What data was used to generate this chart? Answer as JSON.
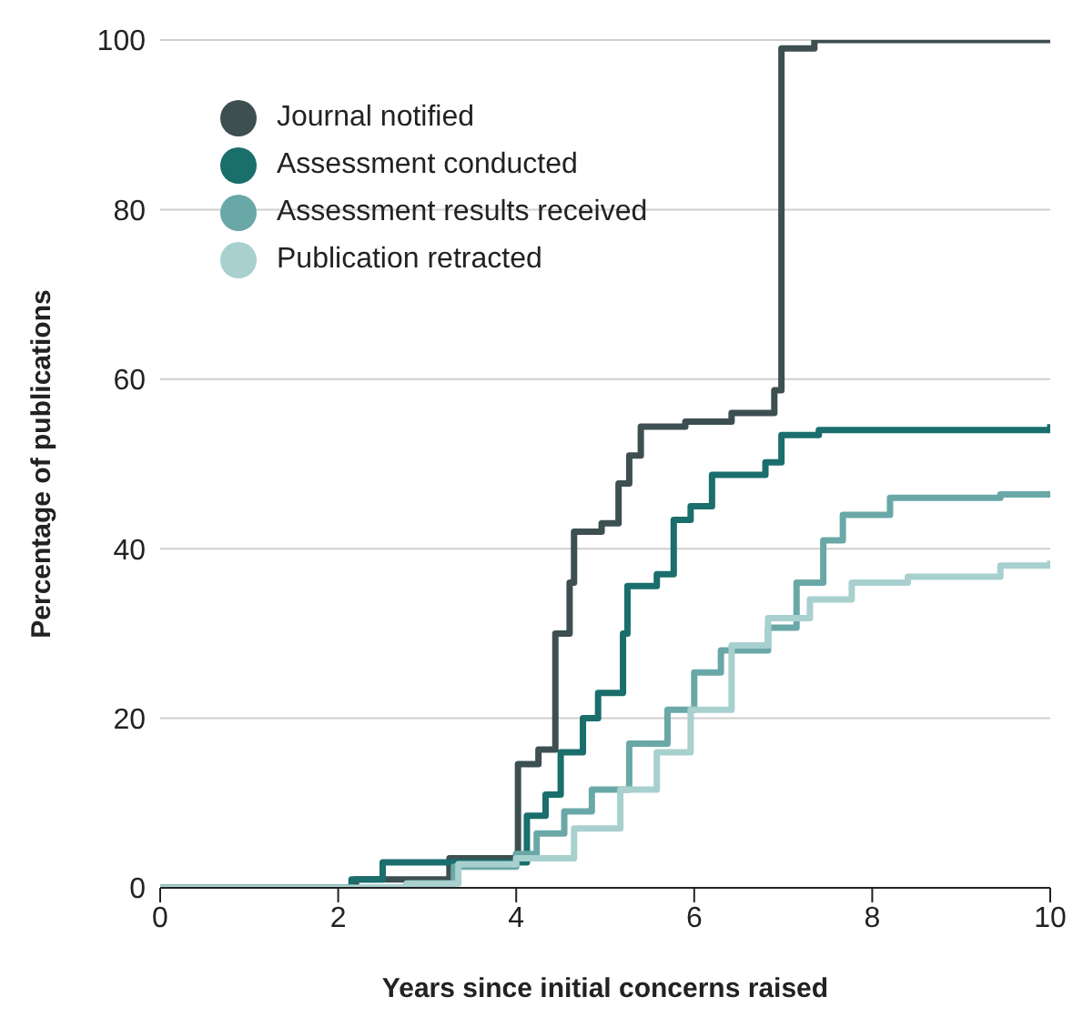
{
  "chart_data": {
    "type": "step",
    "xlabel": "Years since initial concerns raised",
    "ylabel": "Percentage of publications",
    "xlim": [
      0,
      10
    ],
    "xticks": [
      0,
      2,
      4,
      6,
      8,
      10
    ],
    "ylim": [
      0,
      100
    ],
    "yticks": [
      0,
      20,
      40,
      60,
      80,
      100
    ],
    "grid": "y",
    "legend": "top left",
    "marker": "none",
    "line_style": "solid",
    "series": [
      {
        "name": "Journal notified",
        "color": "#3d4f50",
        "x": [
          0,
          2.2,
          3.25,
          4,
          4.02,
          4.25,
          4.44,
          4.6,
          4.65,
          4.96,
          5.15,
          5.27,
          5.4,
          5.9,
          6.42,
          6.9,
          6.98,
          7.35,
          10
        ],
        "values": [
          0,
          1,
          3.5,
          4,
          14.6,
          16.3,
          30,
          36,
          42,
          43,
          47.7,
          51,
          54.4,
          55,
          56,
          58.7,
          99,
          100,
          100
        ]
      },
      {
        "name": "Assessment conducted",
        "color": "#1a6e6c",
        "x": [
          0,
          2.15,
          2.5,
          4,
          4.12,
          4.33,
          4.5,
          4.75,
          4.92,
          5.2,
          5.25,
          5.58,
          5.77,
          5.96,
          6.2,
          6.8,
          6.98,
          7.4,
          10
        ],
        "values": [
          0,
          1,
          3,
          3,
          8.5,
          11,
          16,
          20,
          23,
          30,
          35.6,
          37,
          43.4,
          45,
          48.7,
          50.2,
          53.4,
          54,
          54.7
        ]
      },
      {
        "name": "Assessment results received",
        "color": "#6aa8a8",
        "x": [
          0,
          2.6,
          2.77,
          3.3,
          4,
          4.23,
          4.54,
          4.85,
          5.27,
          5.7,
          6,
          6.3,
          6.83,
          7.15,
          7.45,
          7.67,
          8.2,
          9.44,
          10
        ],
        "values": [
          0,
          0,
          0.5,
          2.5,
          4,
          6.4,
          9,
          11.6,
          17,
          21,
          25.4,
          28,
          30.7,
          36,
          41,
          44,
          46,
          46.4,
          46.8
        ]
      },
      {
        "name": "Publication retracted",
        "color": "#a8d0cf",
        "x": [
          0,
          2.6,
          2.77,
          3.35,
          4,
          4.65,
          5.17,
          5.58,
          5.96,
          6.42,
          6.83,
          7.3,
          7.77,
          8.4,
          9.44,
          10
        ],
        "values": [
          0,
          0,
          0.5,
          2.8,
          3.5,
          7,
          11.6,
          16,
          21,
          28.6,
          31.8,
          34,
          36,
          36.7,
          38,
          38.6
        ]
      }
    ]
  }
}
